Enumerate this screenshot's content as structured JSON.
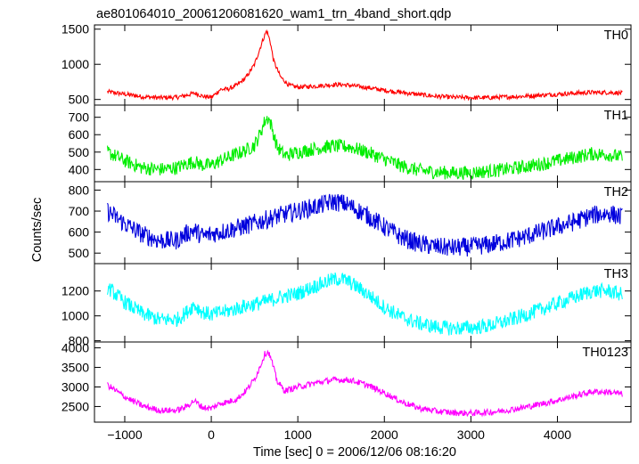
{
  "chart_data": {
    "type": "line",
    "title": "ae801064010_20061206081620_wam1_trn_4band_short.qdp",
    "xlabel": "Time [sec] 0 = 2006/12/06 08:16:20",
    "ylabel": "Counts/sec",
    "xlim": [
      -1350,
      4850
    ],
    "x_ticks": [
      -1000,
      0,
      1000,
      2000,
      3000,
      4000
    ],
    "x_tick_labels": [
      "−1000",
      "0",
      "1000",
      "2000",
      "3000",
      "4000"
    ],
    "grid": false,
    "panels": [
      {
        "name": "TH0",
        "color": "#ff0000",
        "ylim": [
          420,
          1560
        ],
        "y_ticks": [
          500,
          1000,
          1500
        ],
        "noise": 32,
        "x": [
          -1200,
          -1000,
          -800,
          -600,
          -400,
          -300,
          -200,
          -150,
          -100,
          0,
          50,
          100,
          200,
          300,
          400,
          500,
          550,
          600,
          640,
          680,
          720,
          800,
          900,
          1000,
          1200,
          1400,
          1500,
          1600,
          1800,
          2000,
          2200,
          2400,
          2600,
          2800,
          3000,
          3200,
          3400,
          3600,
          3800,
          4000,
          4200,
          4400,
          4600,
          4750
        ],
        "y": [
          610,
          575,
          540,
          525,
          530,
          555,
          590,
          575,
          545,
          530,
          580,
          640,
          650,
          705,
          810,
          1000,
          1180,
          1360,
          1480,
          1330,
          1050,
          820,
          700,
          675,
          690,
          710,
          712,
          700,
          670,
          630,
          600,
          570,
          545,
          530,
          525,
          525,
          535,
          545,
          560,
          575,
          590,
          600,
          600,
          590
        ]
      },
      {
        "name": "TH1",
        "color": "#00ee00",
        "ylim": [
          330,
          770
        ],
        "y_ticks": [
          400,
          500,
          600,
          700
        ],
        "noise": 40,
        "x": [
          -1200,
          -1000,
          -800,
          -600,
          -400,
          -300,
          -200,
          -100,
          0,
          100,
          200,
          300,
          400,
          500,
          560,
          620,
          660,
          700,
          760,
          850,
          1000,
          1200,
          1400,
          1600,
          1800,
          2000,
          2200,
          2400,
          2600,
          2800,
          3000,
          3200,
          3400,
          3600,
          3800,
          4000,
          4200,
          4400,
          4600,
          4750
        ],
        "y": [
          500,
          450,
          410,
          400,
          410,
          430,
          445,
          425,
          425,
          450,
          470,
          490,
          510,
          540,
          600,
          680,
          700,
          640,
          530,
          480,
          500,
          520,
          535,
          530,
          500,
          460,
          420,
          395,
          385,
          380,
          382,
          390,
          400,
          415,
          430,
          450,
          470,
          490,
          485,
          470
        ]
      },
      {
        "name": "TH2",
        "color": "#0000dd",
        "ylim": [
          450,
          840
        ],
        "y_ticks": [
          500,
          600,
          700,
          800
        ],
        "noise": 45,
        "x": [
          -1200,
          -1000,
          -800,
          -600,
          -400,
          -300,
          -200,
          -100,
          0,
          200,
          400,
          600,
          800,
          1000,
          1200,
          1400,
          1500,
          1600,
          1800,
          2000,
          2200,
          2400,
          2600,
          2800,
          3000,
          3200,
          3400,
          3600,
          3800,
          4000,
          4200,
          4400,
          4600,
          4750
        ],
        "y": [
          700,
          640,
          590,
          560,
          560,
          590,
          610,
          580,
          590,
          610,
          630,
          655,
          680,
          700,
          720,
          745,
          740,
          725,
          680,
          625,
          575,
          545,
          530,
          525,
          530,
          540,
          555,
          575,
          600,
          625,
          650,
          680,
          690,
          670
        ]
      },
      {
        "name": "TH3",
        "color": "#00ffff",
        "ylim": [
          790,
          1420
        ],
        "y_ticks": [
          800,
          1000,
          1200
        ],
        "noise": 60,
        "x": [
          -1200,
          -1000,
          -800,
          -600,
          -400,
          -300,
          -200,
          -100,
          0,
          200,
          400,
          600,
          800,
          1000,
          1200,
          1400,
          1500,
          1600,
          1800,
          2000,
          2200,
          2400,
          2600,
          2800,
          3000,
          3200,
          3400,
          3600,
          3800,
          4000,
          4200,
          4400,
          4600,
          4750
        ],
        "y": [
          1230,
          1110,
          1020,
          970,
          970,
          1020,
          1090,
          1030,
          1010,
          1040,
          1080,
          1110,
          1150,
          1180,
          1240,
          1290,
          1300,
          1270,
          1180,
          1070,
          990,
          940,
          910,
          900,
          905,
          920,
          955,
          1000,
          1050,
          1100,
          1150,
          1200,
          1200,
          1170
        ]
      },
      {
        "name": "TH0123",
        "color": "#ff00ff",
        "ylim": [
          2100,
          4150
        ],
        "y_ticks": [
          2500,
          3000,
          3500,
          4000
        ],
        "noise": 80,
        "x": [
          -1200,
          -1000,
          -800,
          -600,
          -400,
          -300,
          -200,
          -100,
          0,
          100,
          200,
          300,
          400,
          500,
          560,
          620,
          660,
          700,
          760,
          850,
          1000,
          1200,
          1400,
          1600,
          1800,
          2000,
          2200,
          2400,
          2600,
          2800,
          3000,
          3200,
          3400,
          3600,
          3800,
          4000,
          4200,
          4400,
          4600,
          4750
        ],
        "y": [
          3050,
          2750,
          2520,
          2400,
          2400,
          2480,
          2650,
          2480,
          2450,
          2580,
          2620,
          2700,
          2900,
          3200,
          3500,
          3850,
          3900,
          3650,
          3150,
          2900,
          3000,
          3100,
          3180,
          3180,
          3050,
          2850,
          2620,
          2460,
          2380,
          2340,
          2330,
          2350,
          2400,
          2470,
          2560,
          2660,
          2770,
          2880,
          2870,
          2820
        ]
      }
    ]
  }
}
